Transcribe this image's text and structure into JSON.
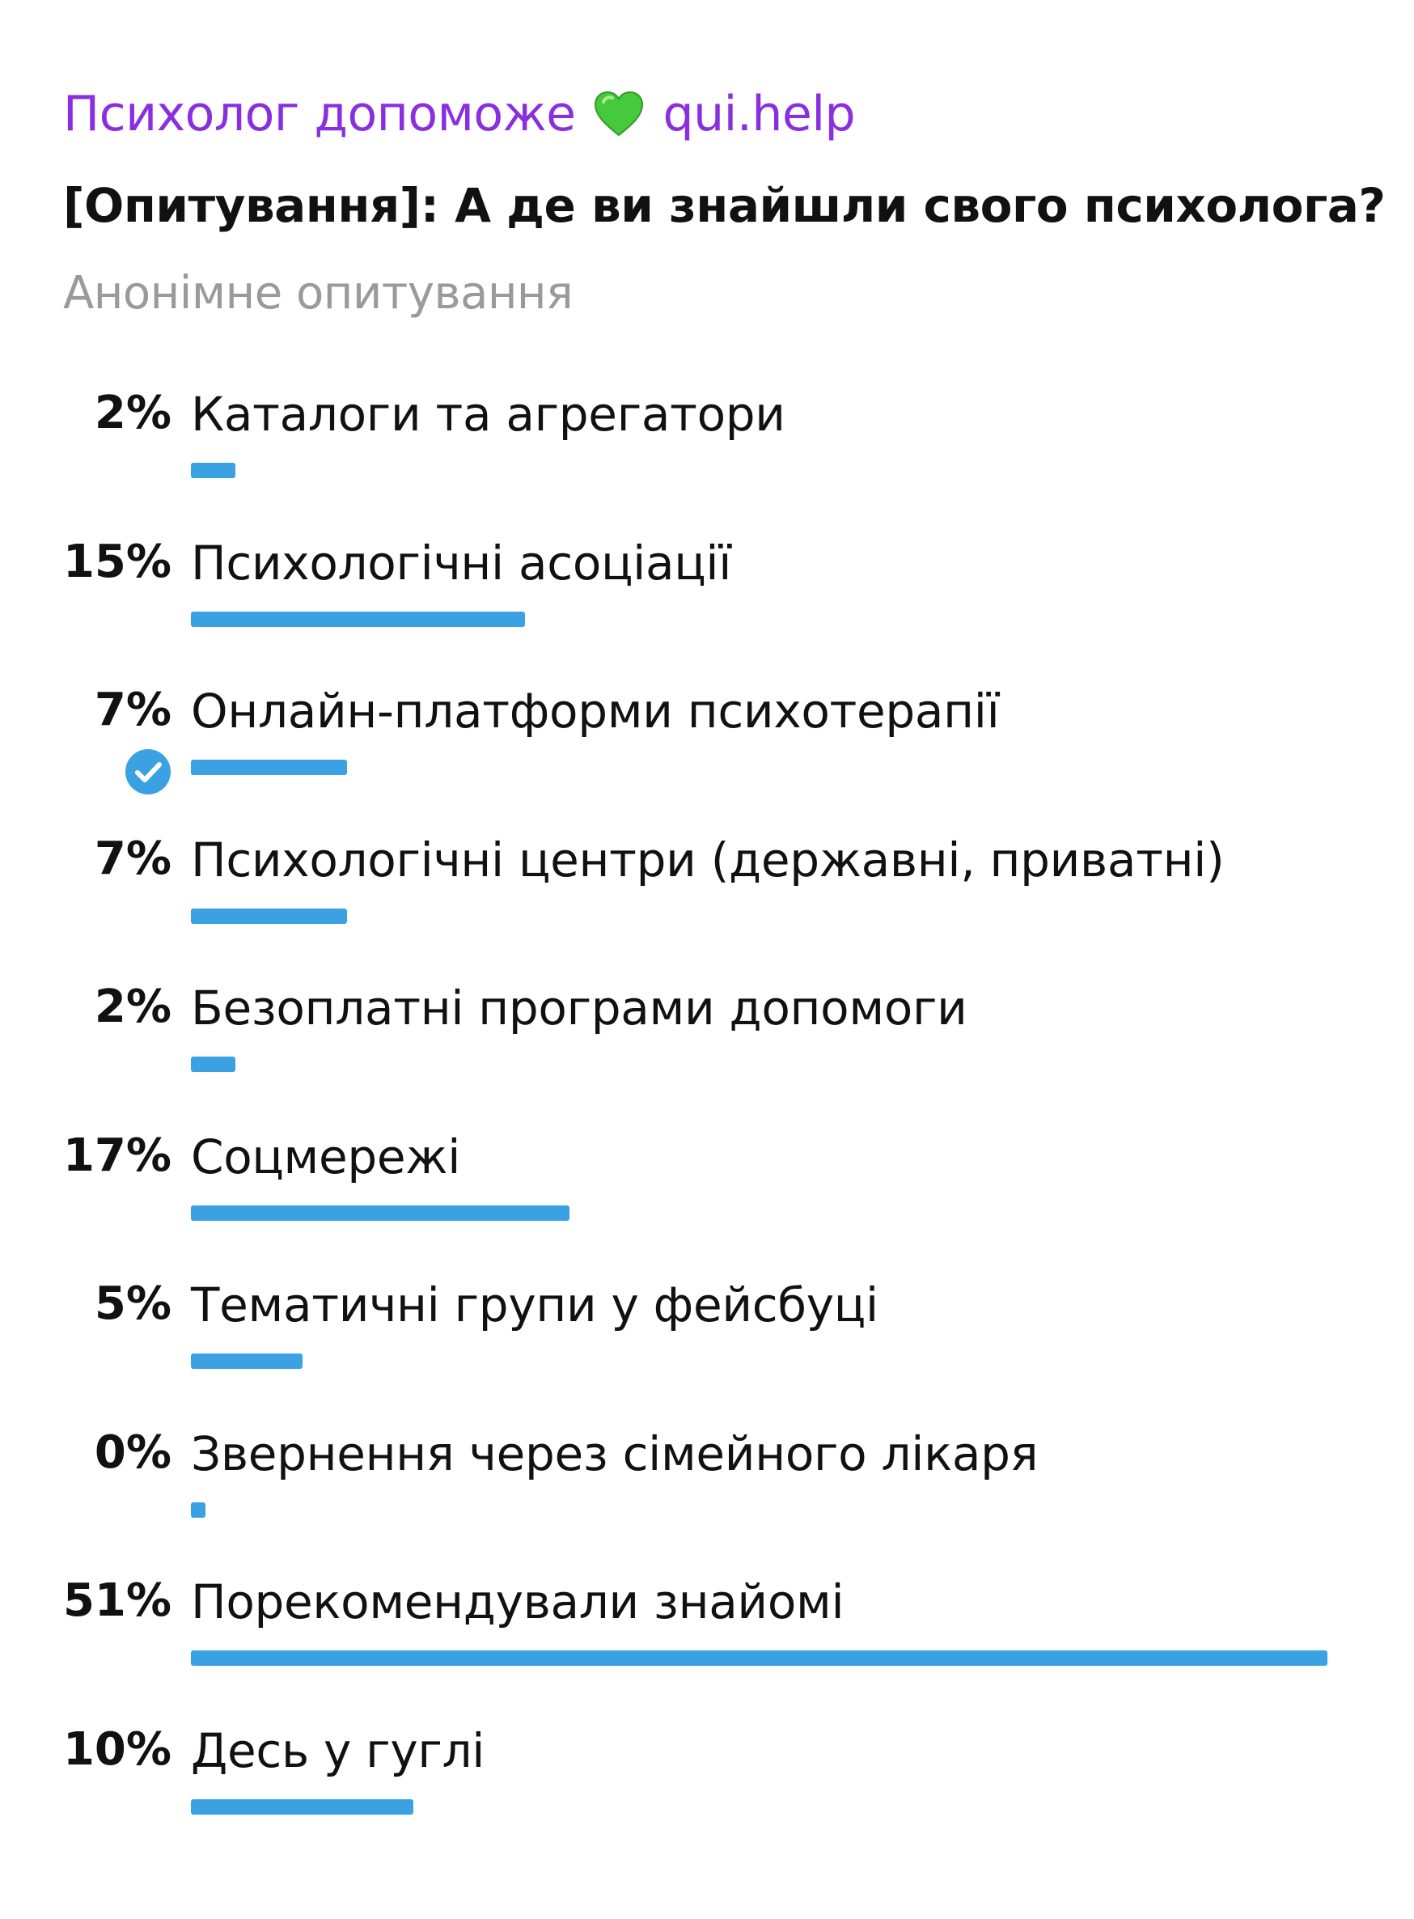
{
  "header": {
    "channel_name": "Психолог допоможе",
    "channel_handle": "qui.help",
    "heart_icon": "green-heart-emoji",
    "channel_color": "#8a2fe0"
  },
  "poll": {
    "question": "[Опитування]: А де ви знайшли свого психолога?",
    "type_label": "Анонімне опитування",
    "bar_color": "#3aa1e2",
    "check_color": "#3aa1e2",
    "options": [
      {
        "percent_label": "2%",
        "value": 2,
        "label": "Каталоги та агрегатори",
        "voted": false
      },
      {
        "percent_label": "15%",
        "value": 15,
        "label": "Психологічні асоціації",
        "voted": false
      },
      {
        "percent_label": "7%",
        "value": 7,
        "label": "Онлайн-платформи психотерапії",
        "voted": true
      },
      {
        "percent_label": "7%",
        "value": 7,
        "label": "Психологічні центри (державні, приватні)",
        "voted": false
      },
      {
        "percent_label": "2%",
        "value": 2,
        "label": "Безоплатні програми допомоги",
        "voted": false
      },
      {
        "percent_label": "17%",
        "value": 17,
        "label": "Соцмережі",
        "voted": false
      },
      {
        "percent_label": "5%",
        "value": 5,
        "label": "Тематичні групи у фейсбуці",
        "voted": false
      },
      {
        "percent_label": "0%",
        "value": 0,
        "label": "Звернення через сімейного лікаря",
        "voted": false
      },
      {
        "percent_label": "51%",
        "value": 51,
        "label": "Порекомендували знайомі",
        "voted": false
      },
      {
        "percent_label": "10%",
        "value": 10,
        "label": "Десь у гуглі",
        "voted": false
      }
    ]
  }
}
